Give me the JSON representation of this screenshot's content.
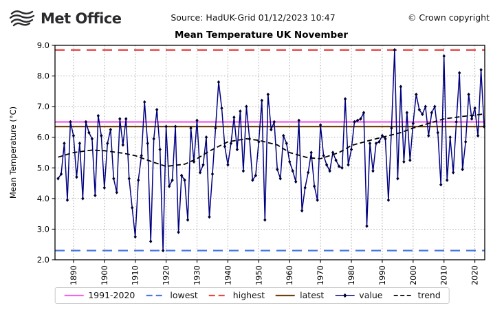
{
  "header": {
    "logo_text": "Met Office",
    "source": "Source: HadUK-Grid 01/12/2023 10:47",
    "copyright": "© Crown copyright"
  },
  "chart_data": {
    "type": "line",
    "title": "Mean Temperature UK November",
    "ylabel": "Mean Temperature (°C)",
    "ylim": [
      2.0,
      9.0
    ],
    "ytick_step": 1.0,
    "xticks": [
      1890,
      1900,
      1910,
      1920,
      1930,
      1940,
      1950,
      1960,
      1970,
      1980,
      1990,
      2000,
      2010,
      2020
    ],
    "x_range": [
      1884,
      2023.2
    ],
    "grid": true,
    "legend_position": "bottom",
    "colors": {
      "value": "#000080",
      "marker": "#000033",
      "trend": "#000000",
      "avg_1991_2020": "#f564ef",
      "lowest": "#4a78e0",
      "highest": "#e84743",
      "latest": "#70400f",
      "gridline": "#9a9a9a",
      "axis": "#000000"
    },
    "reference_lines": [
      {
        "label": "1991-2020",
        "value": 6.5,
        "style": "solid",
        "color_key": "avg_1991_2020"
      },
      {
        "label": "lowest",
        "value": 2.3,
        "style": "dashed",
        "color_key": "lowest"
      },
      {
        "label": "highest",
        "value": 8.85,
        "style": "dashed",
        "color_key": "highest"
      },
      {
        "label": "latest",
        "value": 6.35,
        "style": "solid",
        "color_key": "latest"
      }
    ],
    "value_series": {
      "name": "value",
      "marker": "diamond",
      "start_year": 1885,
      "values": [
        4.65,
        4.8,
        5.8,
        3.95,
        6.5,
        6.05,
        4.7,
        5.8,
        4.0,
        6.5,
        6.15,
        5.95,
        4.1,
        6.7,
        6.05,
        4.35,
        5.8,
        6.25,
        4.65,
        4.2,
        6.6,
        5.75,
        6.6,
        4.65,
        3.7,
        2.75,
        4.6,
        5.4,
        7.15,
        5.8,
        2.6,
        5.95,
        6.9,
        5.6,
        2.3,
        6.35,
        4.4,
        4.6,
        6.35,
        2.9,
        4.75,
        4.6,
        3.3,
        6.3,
        5.2,
        6.55,
        4.85,
        5.1,
        6.0,
        3.4,
        4.8,
        6.3,
        7.8,
        6.95,
        5.7,
        5.1,
        5.8,
        6.65,
        5.6,
        6.85,
        4.9,
        7.0,
        5.95,
        4.6,
        4.75,
        5.85,
        7.2,
        3.3,
        7.4,
        6.25,
        6.5,
        4.95,
        4.65,
        6.05,
        5.8,
        5.2,
        4.9,
        4.55,
        6.55,
        3.6,
        4.35,
        4.85,
        5.5,
        4.4,
        3.95,
        6.4,
        5.4,
        5.1,
        4.9,
        5.5,
        5.25,
        5.05,
        5.0,
        7.25,
        5.1,
        5.6,
        6.5,
        6.55,
        6.6,
        6.8,
        3.1,
        5.8,
        4.9,
        5.8,
        5.85,
        6.05,
        5.95,
        3.95,
        6.3,
        8.85,
        4.65,
        7.65,
        5.2,
        6.8,
        5.25,
        6.45,
        7.4,
        6.9,
        6.75,
        7.0,
        6.05,
        6.8,
        7.0,
        6.15,
        4.45,
        8.65,
        4.6,
        6.0,
        4.85,
        6.5,
        8.1,
        4.95,
        5.85,
        7.4,
        6.6,
        6.95,
        6.05,
        8.2,
        6.35
      ]
    },
    "trend_series": {
      "name": "trend",
      "style": "dashed",
      "points": [
        [
          1885,
          5.35
        ],
        [
          1890,
          5.5
        ],
        [
          1896,
          5.58
        ],
        [
          1900,
          5.56
        ],
        [
          1906,
          5.48
        ],
        [
          1910,
          5.4
        ],
        [
          1916,
          5.18
        ],
        [
          1920,
          5.05
        ],
        [
          1926,
          5.12
        ],
        [
          1930,
          5.3
        ],
        [
          1934,
          5.55
        ],
        [
          1940,
          5.85
        ],
        [
          1946,
          5.95
        ],
        [
          1950,
          5.9
        ],
        [
          1956,
          5.75
        ],
        [
          1960,
          5.5
        ],
        [
          1966,
          5.33
        ],
        [
          1970,
          5.3
        ],
        [
          1976,
          5.5
        ],
        [
          1980,
          5.73
        ],
        [
          1986,
          5.9
        ],
        [
          1990,
          6.0
        ],
        [
          1996,
          6.15
        ],
        [
          2000,
          6.3
        ],
        [
          2006,
          6.48
        ],
        [
          2010,
          6.6
        ],
        [
          2016,
          6.68
        ],
        [
          2020,
          6.72
        ],
        [
          2023,
          6.76
        ]
      ]
    },
    "legend_order": [
      "1991-2020",
      "lowest",
      "highest",
      "latest",
      "value",
      "trend"
    ]
  }
}
